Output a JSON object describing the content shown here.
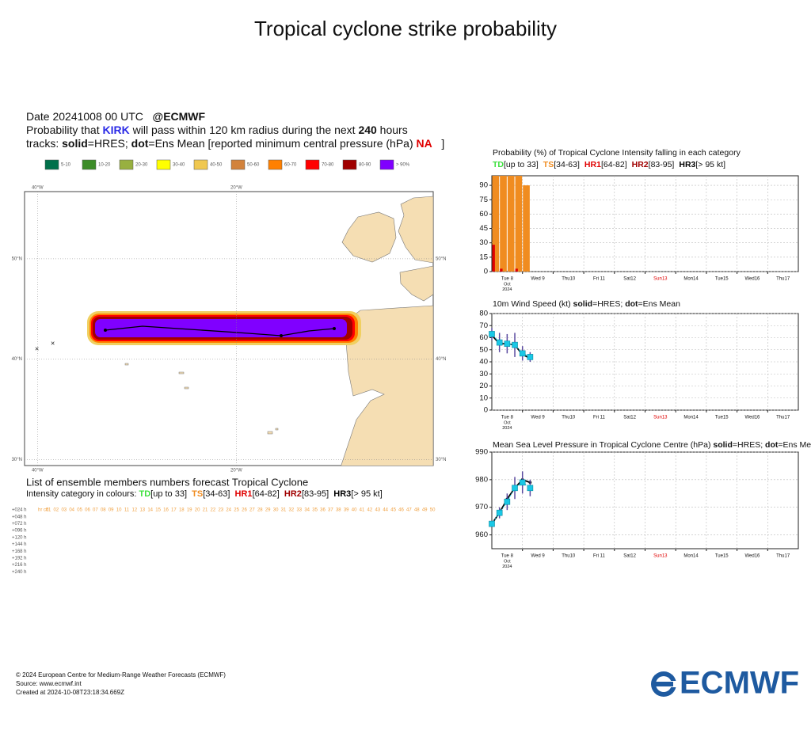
{
  "page_title": "Tropical cyclone strike probability",
  "header": {
    "lines": [
      [
        {
          "text": "Date 20241008 00 UTC   "
        },
        {
          "text": "@ECMWF",
          "bold": true
        }
      ],
      [
        {
          "text": "Probability that "
        },
        {
          "text": "KIRK",
          "bold": true,
          "color": "#2a2ae6"
        },
        {
          "text": " will pass within 120 km radius during the next "
        },
        {
          "text": "240",
          "bold": true
        },
        {
          "text": " hours"
        }
      ],
      [
        {
          "text": "tracks: "
        },
        {
          "text": "solid",
          "bold": true
        },
        {
          "text": "=HRES; "
        },
        {
          "text": "dot",
          "bold": true
        },
        {
          "text": "=Ens Mean [reported minimum central pressure (hPa) "
        },
        {
          "text": "NA",
          "bold": true,
          "color": "#e00000"
        },
        {
          "text": "   ]"
        }
      ]
    ],
    "probability_bins": [
      {
        "label": "5-10",
        "color": "#00704a"
      },
      {
        "label": "10-20",
        "color": "#3c8c28"
      },
      {
        "label": "20-30",
        "color": "#98b040"
      },
      {
        "label": "30-40",
        "color": "#ffff00"
      },
      {
        "label": "40-50",
        "color": "#f0c850"
      },
      {
        "label": "50-60",
        "color": "#d2823c"
      },
      {
        "label": "60-70",
        "color": "#ff8000"
      },
      {
        "label": "70-80",
        "color": "#ff0000"
      },
      {
        "label": "80-90",
        "color": "#a00000"
      },
      {
        "label": "> 90%",
        "color": "#8000ff"
      }
    ]
  },
  "map": {
    "xlim": [
      -41.3,
      -0.2
    ],
    "ylim": [
      29.4,
      56.7
    ],
    "lon_ticks": [
      {
        "value": -40,
        "label": "40°W"
      },
      {
        "value": -20,
        "label": "20°W"
      }
    ],
    "lat_ticks": [
      {
        "value": 50,
        "label": "50°N"
      },
      {
        "value": 40,
        "label": "40°N"
      },
      {
        "value": 30,
        "label": "30°N"
      }
    ]
  },
  "ensemble": {
    "title": "List of ensemble members numbers forecast Tropical Cyclone",
    "subtitle": [
      {
        "text": "Intensity category in colours: "
      },
      {
        "text": "TD",
        "bold": true,
        "color": "#3ee03e"
      },
      {
        "text": "[up to 33]  "
      },
      {
        "text": "TS",
        "bold": true,
        "color": "#f08c20"
      },
      {
        "text": "[34-63]  "
      },
      {
        "text": "HR1",
        "bold": true,
        "color": "#e00000"
      },
      {
        "text": "[64-82]  "
      },
      {
        "text": "HR2",
        "bold": true,
        "color": "#a00000"
      },
      {
        "text": "[83-95]  "
      },
      {
        "text": "HR3",
        "bold": true,
        "color": "#000000"
      },
      {
        "text": "[> 95 kt]"
      }
    ],
    "header": "hr cd",
    "members": [
      "01",
      "02",
      "03",
      "04",
      "05",
      "06",
      "07",
      "08",
      "09",
      "10",
      "11",
      "12",
      "13",
      "14",
      "15",
      "16",
      "17",
      "18",
      "19",
      "20",
      "21",
      "22",
      "23",
      "24",
      "25",
      "26",
      "27",
      "28",
      "29",
      "30",
      "31",
      "32",
      "33",
      "34",
      "35",
      "36",
      "37",
      "38",
      "39",
      "40",
      "41",
      "42",
      "43",
      "44",
      "45",
      "46",
      "47",
      "48",
      "49",
      "50"
    ],
    "lead_times": [
      "+024 h",
      "+048 h",
      "+072 h",
      "+096 h",
      "+120 h",
      "+144 h",
      "+168 h",
      "+192 h",
      "+216 h",
      "+240 h"
    ]
  },
  "chart_data": [
    {
      "type": "bar",
      "title": [
        {
          "text": "Probability (%) of Tropical Cyclone Intensity falling in each category"
        }
      ],
      "x": [
        0,
        6,
        12,
        18,
        24
      ],
      "series": [
        {
          "name": "TD",
          "range": "[up to 33]",
          "color": "#3ee03e",
          "values": [
            0,
            0,
            0,
            0,
            0
          ]
        },
        {
          "name": "TS",
          "range": "[34-63]",
          "color": "#f08c20",
          "values": [
            100,
            100,
            100,
            100,
            90
          ]
        },
        {
          "name": "HR1",
          "range": "[64-82]",
          "color": "#e00000",
          "values": [
            28,
            3,
            0,
            3,
            0
          ]
        },
        {
          "name": "HR2",
          "range": "[83-95]",
          "color": "#a00000",
          "values": [
            0,
            0,
            0,
            0,
            0
          ]
        },
        {
          "name": "HR3",
          "range": "[> 95 kt]",
          "color": "#000000",
          "values": [
            0,
            0,
            0,
            0,
            0
          ]
        }
      ],
      "xlim": [
        0,
        240
      ],
      "xticks": [
        {
          "value": 12,
          "label": "Tue 8"
        },
        {
          "value": 36,
          "label": "Wed 9"
        },
        {
          "value": 60,
          "label": "Thu10"
        },
        {
          "value": 84,
          "label": "Fri 11"
        },
        {
          "value": 108,
          "label": "Sat12"
        },
        {
          "value": 132,
          "label": "Sun13",
          "color": "#e00000"
        },
        {
          "value": 156,
          "label": "Mon14"
        },
        {
          "value": 180,
          "label": "Tue15"
        },
        {
          "value": 204,
          "label": "Wed16"
        },
        {
          "value": 228,
          "label": "Thu17"
        }
      ],
      "x_sublabels": [
        "Oct",
        "2024"
      ],
      "xgrid": [
        24,
        48,
        72,
        96,
        120,
        144,
        168,
        192,
        216
      ],
      "ylim": [
        0,
        100
      ],
      "yticks": [
        0,
        15,
        30,
        45,
        60,
        75,
        90
      ],
      "grid": true
    },
    {
      "type": "line",
      "title": [
        {
          "text": "10m Wind Speed (kt) "
        },
        {
          "text": "solid",
          "bold": true
        },
        {
          "text": "=HRES; "
        },
        {
          "text": "dot",
          "bold": true
        },
        {
          "text": "=Ens Mean"
        }
      ],
      "x": [
        0,
        6,
        12,
        18,
        24,
        30
      ],
      "series": [
        {
          "style": "solid",
          "color": "#000000",
          "values": [
            62,
            55,
            55,
            54,
            46,
            43
          ]
        },
        {
          "style": "dot",
          "color": "#19c8e6",
          "values": [
            63,
            56,
            55,
            54,
            47,
            44
          ],
          "errors": [
            5,
            8,
            8,
            10,
            6,
            4
          ]
        }
      ],
      "xlim": [
        0,
        240
      ],
      "xticks": [
        {
          "value": 12,
          "label": "Tue 8"
        },
        {
          "value": 36,
          "label": "Wed 9"
        },
        {
          "value": 60,
          "label": "Thu10"
        },
        {
          "value": 84,
          "label": "Fri 11"
        },
        {
          "value": 108,
          "label": "Sat12"
        },
        {
          "value": 132,
          "label": "Sun13",
          "color": "#e00000"
        },
        {
          "value": 156,
          "label": "Mon14"
        },
        {
          "value": 180,
          "label": "Tue15"
        },
        {
          "value": 204,
          "label": "Wed16"
        },
        {
          "value": 228,
          "label": "Thu17"
        }
      ],
      "x_sublabels": [
        "Oct",
        "2024"
      ],
      "xgrid": [
        24,
        48,
        72,
        96,
        120,
        144,
        168,
        192,
        216
      ],
      "ylim": [
        0,
        80
      ],
      "yticks": [
        0,
        10,
        20,
        30,
        40,
        50,
        60,
        70,
        80
      ],
      "grid": true
    },
    {
      "type": "line",
      "title": [
        {
          "text": "Mean Sea Level Pressure in Tropical Cyclone Centre (hPa) "
        },
        {
          "text": "solid",
          "bold": true
        },
        {
          "text": "=HRES; "
        },
        {
          "text": "dot",
          "bold": true
        },
        {
          "text": "=Ens Mean"
        }
      ],
      "x": [
        0,
        6,
        12,
        18,
        24,
        30
      ],
      "series": [
        {
          "style": "solid",
          "color": "#000000",
          "values": [
            964,
            968,
            973,
            977,
            980,
            979
          ]
        },
        {
          "style": "dot",
          "color": "#19c8e6",
          "values": [
            964,
            968,
            972,
            977,
            979,
            977
          ],
          "errors": [
            1,
            2,
            3,
            4,
            4,
            3
          ]
        }
      ],
      "xlim": [
        0,
        240
      ],
      "xticks": [
        {
          "value": 12,
          "label": "Tue 8"
        },
        {
          "value": 36,
          "label": "Wed 9"
        },
        {
          "value": 60,
          "label": "Thu10"
        },
        {
          "value": 84,
          "label": "Fri 11"
        },
        {
          "value": 108,
          "label": "Sat12"
        },
        {
          "value": 132,
          "label": "Sun13",
          "color": "#e00000"
        },
        {
          "value": 156,
          "label": "Mon14"
        },
        {
          "value": 180,
          "label": "Tue15"
        },
        {
          "value": 204,
          "label": "Wed16"
        },
        {
          "value": 228,
          "label": "Thu17"
        }
      ],
      "x_sublabels": [
        "Oct",
        "2024"
      ],
      "xgrid": [
        24,
        48,
        72,
        96,
        120,
        144,
        168,
        192,
        216
      ],
      "ylim": [
        955,
        990
      ],
      "yticks": [
        960,
        970,
        980,
        990
      ],
      "grid": true
    }
  ],
  "footer": [
    "© 2024 European Centre for Medium-Range Weather Forecasts (ECMWF)",
    "Source: www.ecmwf.int",
    "Created at 2024-10-08T23:18:34.669Z"
  ],
  "logo": "ECMWF"
}
